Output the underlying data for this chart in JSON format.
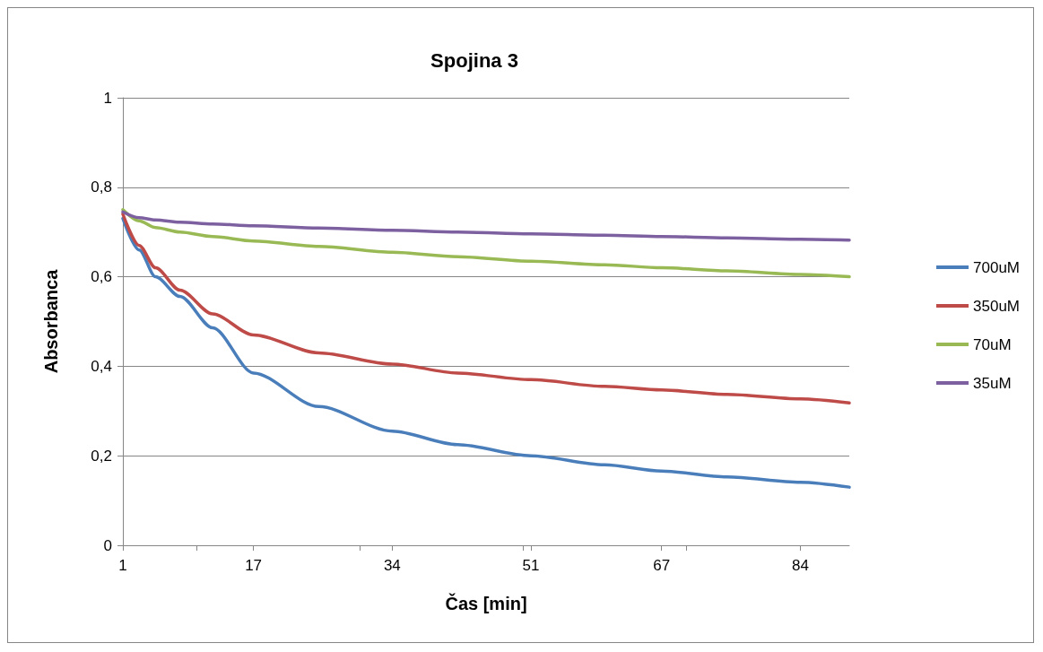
{
  "chart_data": {
    "type": "line",
    "title": "Spojina 3",
    "xlabel": "Čas [min]",
    "ylabel": "Absorbanca",
    "x": [
      1,
      3,
      5,
      8,
      12,
      17,
      25,
      34,
      42,
      51,
      60,
      67,
      75,
      84,
      90
    ],
    "xlim": [
      1,
      90
    ],
    "xticks": [
      1,
      17,
      34,
      51,
      67,
      84
    ],
    "ylim": [
      0,
      1
    ],
    "yticks": [
      {
        "value": 0,
        "label": "0"
      },
      {
        "value": 0.2,
        "label": "0,2"
      },
      {
        "value": 0.4,
        "label": "0,4"
      },
      {
        "value": 0.6,
        "label": "0,6"
      },
      {
        "value": 0.8,
        "label": "0,8"
      },
      {
        "value": 1,
        "label": "1"
      }
    ],
    "grid": "y",
    "legend": "right",
    "marker": "none",
    "line_style": "solid",
    "series": [
      {
        "name": "700uM",
        "color": "#4a7ebb",
        "values": [
          0.73,
          0.66,
          0.6,
          0.556,
          0.486,
          0.385,
          0.31,
          0.255,
          0.225,
          0.2,
          0.18,
          0.166,
          0.153,
          0.141,
          0.13
        ]
      },
      {
        "name": "350uM",
        "color": "#be4b48",
        "values": [
          0.74,
          0.67,
          0.62,
          0.57,
          0.517,
          0.47,
          0.43,
          0.405,
          0.385,
          0.37,
          0.355,
          0.347,
          0.337,
          0.327,
          0.318
        ]
      },
      {
        "name": "70uM",
        "color": "#98b954",
        "values": [
          0.75,
          0.725,
          0.71,
          0.7,
          0.69,
          0.68,
          0.668,
          0.655,
          0.645,
          0.635,
          0.627,
          0.62,
          0.613,
          0.605,
          0.6
        ]
      },
      {
        "name": "35uM",
        "color": "#7d60a0",
        "values": [
          0.745,
          0.732,
          0.727,
          0.722,
          0.718,
          0.714,
          0.709,
          0.704,
          0.7,
          0.696,
          0.693,
          0.69,
          0.687,
          0.684,
          0.682
        ]
      }
    ]
  }
}
